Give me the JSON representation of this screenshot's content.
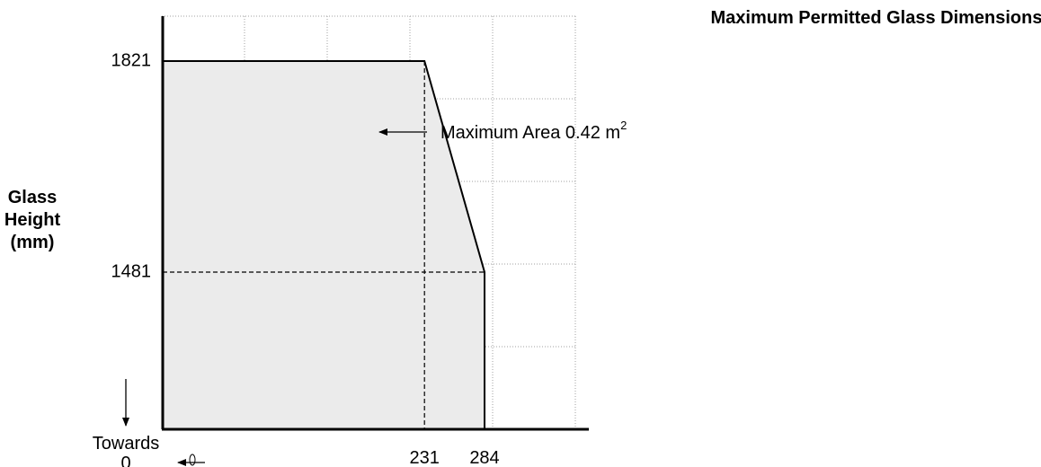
{
  "chart_data": {
    "type": "area",
    "title": "Maximum Permitted Glass Dimensions",
    "xlabel": "",
    "ylabel": "Glass Height (mm)",
    "x_ticks": [
      "231",
      "284"
    ],
    "y_ticks": [
      "1821",
      "1481"
    ],
    "x": [
      0,
      231,
      284,
      284
    ],
    "y": [
      1821,
      1821,
      1481,
      0
    ],
    "annotation": {
      "text": "Maximum Area 0.42 m",
      "superscript": "2"
    },
    "note": {
      "line1": "Towards",
      "line2": "0"
    },
    "fill_color": "#ebebeb",
    "grid": true
  }
}
